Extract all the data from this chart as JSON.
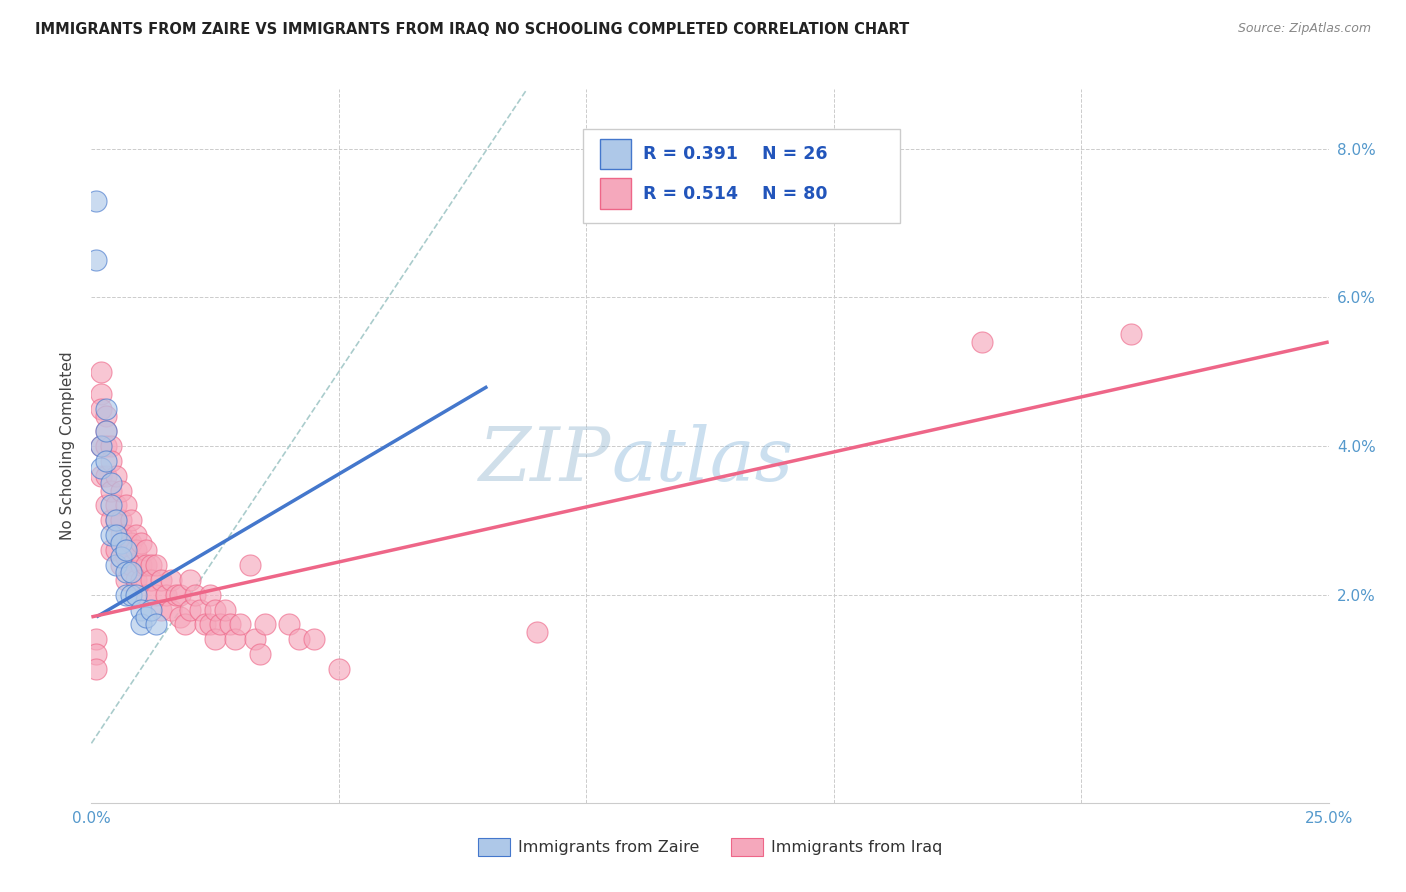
{
  "title": "IMMIGRANTS FROM ZAIRE VS IMMIGRANTS FROM IRAQ NO SCHOOLING COMPLETED CORRELATION CHART",
  "source": "Source: ZipAtlas.com",
  "ylabel": "No Schooling Completed",
  "xlim": [
    0,
    0.25
  ],
  "ylim": [
    -0.008,
    0.088
  ],
  "yticks": [
    0.02,
    0.04,
    0.06,
    0.08
  ],
  "ytick_labels": [
    "2.0%",
    "4.0%",
    "6.0%",
    "8.0%"
  ],
  "color_zaire": "#aec8e8",
  "color_iraq": "#f5a8bc",
  "color_zaire_line": "#4477cc",
  "color_iraq_line": "#ee6688",
  "color_ref_line": "#aacccc",
  "watermark_zip": "ZIP",
  "watermark_atlas": "atlas",
  "legend_r1": "R = 0.391",
  "legend_n1": "N = 26",
  "legend_r2": "R = 0.514",
  "legend_n2": "N = 80",
  "zaire_trend_x": [
    0.001,
    0.08
  ],
  "zaire_trend_y": [
    0.017,
    0.048
  ],
  "iraq_trend_x": [
    0.0,
    0.25
  ],
  "iraq_trend_y": [
    0.017,
    0.054
  ],
  "ref_line_x": [
    0.0,
    0.088
  ],
  "ref_line_y": [
    0.0,
    0.088
  ],
  "zaire_x": [
    0.001,
    0.001,
    0.002,
    0.002,
    0.003,
    0.003,
    0.003,
    0.004,
    0.004,
    0.004,
    0.005,
    0.005,
    0.005,
    0.006,
    0.006,
    0.007,
    0.007,
    0.007,
    0.008,
    0.008,
    0.009,
    0.01,
    0.01,
    0.011,
    0.012,
    0.013
  ],
  "zaire_y": [
    0.073,
    0.065,
    0.04,
    0.037,
    0.045,
    0.042,
    0.038,
    0.035,
    0.032,
    0.028,
    0.03,
    0.028,
    0.024,
    0.027,
    0.025,
    0.026,
    0.023,
    0.02,
    0.023,
    0.02,
    0.02,
    0.018,
    0.016,
    0.017,
    0.018,
    0.016
  ],
  "iraq_x": [
    0.001,
    0.001,
    0.001,
    0.002,
    0.002,
    0.002,
    0.002,
    0.002,
    0.003,
    0.003,
    0.003,
    0.003,
    0.003,
    0.004,
    0.004,
    0.004,
    0.004,
    0.004,
    0.005,
    0.005,
    0.005,
    0.005,
    0.006,
    0.006,
    0.006,
    0.006,
    0.007,
    0.007,
    0.007,
    0.007,
    0.008,
    0.008,
    0.008,
    0.009,
    0.009,
    0.009,
    0.01,
    0.01,
    0.01,
    0.011,
    0.011,
    0.011,
    0.012,
    0.012,
    0.013,
    0.013,
    0.014,
    0.014,
    0.015,
    0.016,
    0.016,
    0.017,
    0.018,
    0.018,
    0.019,
    0.02,
    0.02,
    0.021,
    0.022,
    0.023,
    0.024,
    0.024,
    0.025,
    0.025,
    0.026,
    0.027,
    0.028,
    0.029,
    0.03,
    0.032,
    0.033,
    0.034,
    0.035,
    0.04,
    0.042,
    0.045,
    0.05,
    0.09,
    0.18,
    0.21
  ],
  "iraq_y": [
    0.014,
    0.012,
    0.01,
    0.05,
    0.047,
    0.045,
    0.04,
    0.036,
    0.044,
    0.042,
    0.04,
    0.036,
    0.032,
    0.04,
    0.038,
    0.034,
    0.03,
    0.026,
    0.036,
    0.032,
    0.03,
    0.026,
    0.034,
    0.03,
    0.028,
    0.024,
    0.032,
    0.028,
    0.025,
    0.022,
    0.03,
    0.027,
    0.024,
    0.028,
    0.026,
    0.022,
    0.027,
    0.024,
    0.022,
    0.026,
    0.024,
    0.02,
    0.024,
    0.022,
    0.024,
    0.02,
    0.022,
    0.018,
    0.02,
    0.022,
    0.018,
    0.02,
    0.02,
    0.017,
    0.016,
    0.022,
    0.018,
    0.02,
    0.018,
    0.016,
    0.02,
    0.016,
    0.018,
    0.014,
    0.016,
    0.018,
    0.016,
    0.014,
    0.016,
    0.024,
    0.014,
    0.012,
    0.016,
    0.016,
    0.014,
    0.014,
    0.01,
    0.015,
    0.054,
    0.055
  ]
}
